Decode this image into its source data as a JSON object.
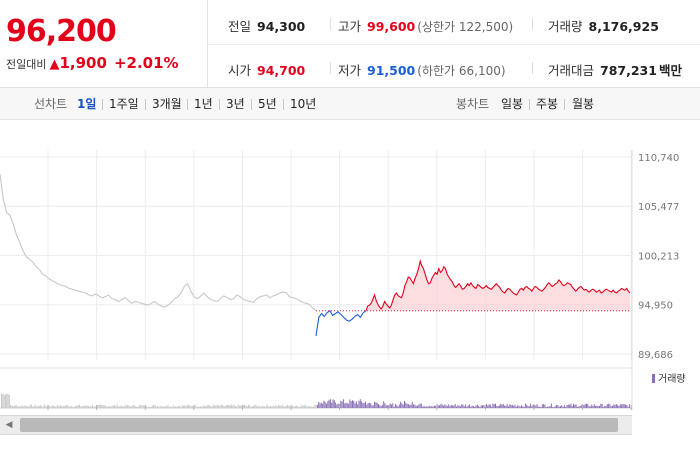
{
  "summary": {
    "current_price": "96,200",
    "change_label": "전일대비",
    "change_arrow": "▲",
    "change_value": "1,900",
    "change_pct": "+2.01%"
  },
  "stats": {
    "prev_close": {
      "label": "전일",
      "value": "94,300"
    },
    "high": {
      "label": "고가",
      "value": "99,600",
      "sub": "(상한가 122,500)"
    },
    "volume": {
      "label": "거래량",
      "value": "8,176,925"
    },
    "open": {
      "label": "시가",
      "value": "94,700"
    },
    "low": {
      "label": "저가",
      "value": "91,500",
      "sub": "(하한가 66,100)"
    },
    "trade_amount": {
      "label": "거래대금",
      "value": "787,231",
      "unit": "백만"
    }
  },
  "line_tabs": {
    "label": "선차트",
    "items": [
      "1일",
      "1주일",
      "3개월",
      "1년",
      "3년",
      "5년",
      "10년"
    ],
    "active": "1일"
  },
  "candle_tabs": {
    "label": "봉차트",
    "items": [
      "일봉",
      "주봉",
      "월봉"
    ]
  },
  "colors": {
    "up": "#e3001b",
    "down": "#1a5fd4",
    "prev_day_line": "#c8c8c8",
    "volume": "#8a6fb7"
  },
  "chart_data": {
    "type": "line",
    "ylim": [
      89686,
      110740
    ],
    "ytick_labels": [
      "110,740",
      "105,477",
      "100,213",
      "94,950",
      "89,686"
    ],
    "yticks": [
      110740,
      105477,
      100213,
      94950,
      89686
    ],
    "reference_price": 94300,
    "legend": "거래량",
    "series": [
      {
        "values": [
          108900,
          106200,
          104800,
          104500,
          103600,
          102400,
          101600,
          100700,
          100100,
          99800,
          99500,
          99000,
          98700,
          98200,
          98000,
          97700,
          97500,
          97300,
          97100,
          97000,
          96900,
          96700,
          96600,
          96500,
          96400,
          96300,
          96200,
          96000,
          95900,
          96100,
          95900,
          95700,
          95800,
          96000,
          95600,
          95500,
          95300,
          95500,
          95700,
          95400,
          95100,
          95300,
          95200,
          95100,
          95000,
          94900,
          95100,
          95300,
          95000,
          94800,
          94700,
          94900,
          95200,
          95600,
          95800,
          96200,
          96900,
          97200,
          96400,
          95800,
          95600,
          95900,
          96200,
          95800,
          95500,
          95400,
          95300,
          95600,
          95900,
          95700,
          95500,
          95600,
          96000,
          95800,
          95500,
          95400,
          95300,
          95200,
          95600,
          95800,
          95900,
          96000,
          95700,
          95900,
          96000,
          96200,
          96300,
          96200,
          95800,
          95700,
          95600,
          95400,
          95200,
          95100,
          95000,
          94600,
          94300
        ]
      },
      {
        "values": [
          91600,
          93600,
          94000,
          93700,
          94100,
          94300,
          93800,
          94000,
          94200,
          93900,
          93600,
          93300,
          93200,
          93400,
          93700,
          93900,
          93600,
          94100,
          94300
        ]
      },
      {
        "values": [
          94300,
          94800,
          94900,
          95100,
          95500,
          96000,
          95400,
          95000,
          94700,
          94500,
          94800,
          95300,
          95000,
          94800,
          94600,
          94900,
          95500,
          96000,
          96200,
          95900,
          95800,
          95700,
          96200,
          97000,
          97400,
          97900,
          97800,
          97500,
          97200,
          97800,
          98200,
          98800,
          99600,
          99100,
          98800,
          98200,
          97600,
          97200,
          97300,
          97800,
          98100,
          98400,
          98200,
          98800,
          98400,
          98600,
          99000,
          98800,
          98200,
          97900,
          97600,
          97400,
          97000,
          96800,
          97000,
          97200,
          96900,
          96600,
          96700,
          96900,
          97200,
          97000,
          97300,
          97000,
          96800,
          96700,
          97100,
          97000,
          96800,
          96700,
          96800,
          97000,
          96800,
          96700,
          96600,
          96800,
          97000,
          97200,
          97000,
          96800,
          96500,
          96300,
          96200,
          96500,
          96700,
          96600,
          96400,
          96200,
          96100,
          96000,
          96300,
          96600,
          96700,
          96500,
          96800,
          96900,
          96700,
          96600,
          96400,
          96700,
          96900,
          96800,
          96600,
          96500,
          96400,
          96600,
          96800,
          97100,
          97300,
          97100,
          96900,
          97000,
          97200,
          97300,
          97600,
          97400,
          97100,
          97000,
          97100,
          97300,
          97200,
          97100,
          96800,
          96600,
          96400,
          96600,
          96800,
          96900,
          96700,
          96500,
          96600,
          96400,
          96300,
          96500,
          96600,
          96500,
          96300,
          96400,
          96500,
          96200,
          96300,
          96500,
          96600,
          96500,
          96400,
          96300,
          96500,
          96300,
          96200,
          96400,
          96500,
          96700,
          96600,
          96500,
          96700,
          96400,
          96200
        ]
      }
    ]
  }
}
